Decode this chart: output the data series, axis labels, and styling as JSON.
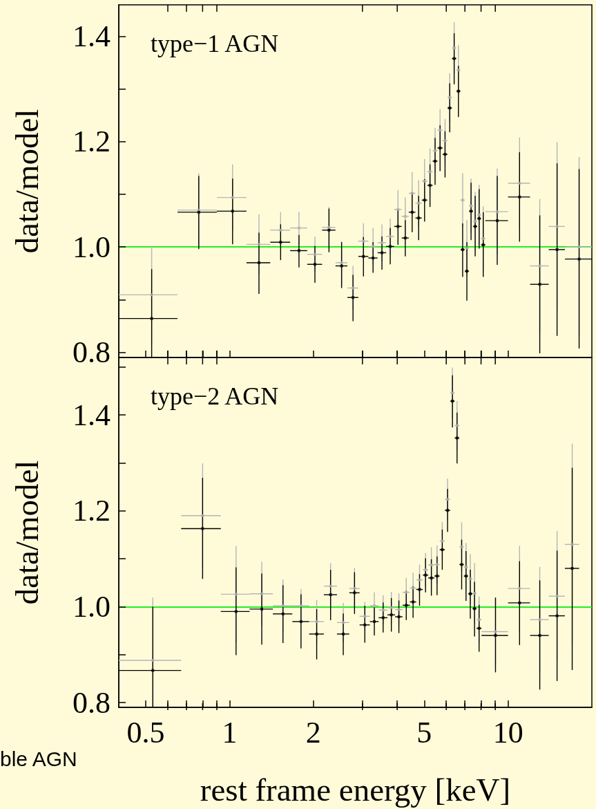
{
  "chart_data": [
    {
      "type": "scatter",
      "ylabel": "data/model",
      "annotations": [
        "type−1 AGN"
      ],
      "marker": "square",
      "grid": false,
      "legend": false,
      "tick_labels": "y",
      "xlim": [
        0.4,
        20
      ],
      "log": "x",
      "xticks": [
        0.5,
        {
          "value": 0.6,
          "label": null
        },
        {
          "value": 0.7,
          "label": null
        },
        {
          "value": 0.8,
          "label": null
        },
        {
          "value": 0.9,
          "label": null
        },
        1,
        2,
        {
          "value": 3,
          "label": null
        },
        {
          "value": 4,
          "label": null
        },
        5,
        {
          "value": 6,
          "label": null
        },
        {
          "value": 7,
          "label": null
        },
        {
          "value": 8,
          "label": null
        },
        {
          "value": 9,
          "label": null
        },
        10
      ],
      "ylim": [
        0.79,
        1.46
      ],
      "yticks": [
        0.8,
        {
          "value": 0.9,
          "label": null
        },
        {
          "value": 1,
          "label": "1.0"
        },
        {
          "value": 1.1,
          "label": null
        },
        1.2,
        {
          "value": 1.3,
          "label": null
        },
        1.4
      ],
      "ref_lines": [
        {
          "axis": "y",
          "value": 1,
          "color": "#22ee22"
        }
      ],
      "x": [
        0.525,
        0.775,
        1.025,
        1.275,
        1.525,
        1.775,
        2.025,
        2.275,
        2.525,
        2.775,
        3.025,
        3.275,
        3.525,
        3.775,
        4.025,
        4.275,
        4.525,
        4.775,
        5.015,
        5.245,
        5.47,
        5.7,
        5.94,
        6.175,
        6.405,
        6.635,
        6.87,
        7.115,
        7.365,
        7.62,
        7.875,
        8.145,
        9.145,
        11,
        13,
        15,
        18
      ],
      "series": [
        {
          "color": "#b4b4b4",
          "values": [
            0.909,
            1.07,
            1.094,
            1.005,
            1.032,
            1.036,
            0.986,
            1.037,
            0.97,
            0.922,
            1.011,
            1.001,
            1.008,
            1.02,
            1.071,
            1.058,
            1.102,
            1.083,
            1.125,
            1.143,
            1.183,
            1.222,
            1.202,
            1.284,
            1.378,
            1.336,
            1.089,
            0.998,
            1.078,
            1.049,
            1.061,
            1.016,
            1.067,
            1.121,
            0.964,
            1.039,
            1.0
          ],
          "errors": [
            [
              0.816,
              1.002
            ],
            [
              1.0,
              1.14
            ],
            [
              1.031,
              1.157
            ],
            [
              0.948,
              1.062
            ],
            [
              0.998,
              1.066
            ],
            [
              1.005,
              1.067
            ],
            [
              0.952,
              1.02
            ],
            [
              0.998,
              1.076
            ],
            [
              0.929,
              1.011
            ],
            [
              0.88,
              0.964
            ],
            [
              0.977,
              1.045
            ],
            [
              0.966,
              1.036
            ],
            [
              0.973,
              1.043
            ],
            [
              0.986,
              1.054
            ],
            [
              1.034,
              1.108
            ],
            [
              1.022,
              1.094
            ],
            [
              1.062,
              1.142
            ],
            [
              1.039,
              1.127
            ],
            [
              1.083,
              1.167
            ],
            [
              1.099,
              1.187
            ],
            [
              1.14,
              1.226
            ],
            [
              1.182,
              1.262
            ],
            [
              1.161,
              1.243
            ],
            [
              1.238,
              1.33
            ],
            [
              1.329,
              1.427
            ],
            [
              1.289,
              1.383
            ],
            [
              1.038,
              1.14
            ],
            [
              0.945,
              1.051
            ],
            [
              1.026,
              1.13
            ],
            [
              0.993,
              1.105
            ],
            [
              1.004,
              1.118
            ],
            [
              0.955,
              1.077
            ],
            [
              0.985,
              1.149
            ],
            [
              1.034,
              1.208
            ],
            [
              0.837,
              1.091
            ],
            [
              0.879,
              1.199
            ],
            [
              0.829,
              1.171
            ]
          ],
          "xerrors": [
            [
              0.4,
              0.65
            ],
            [
              0.65,
              0.9
            ],
            [
              0.9,
              1.15
            ],
            [
              1.15,
              1.4
            ],
            [
              1.4,
              1.65
            ],
            [
              1.65,
              1.9
            ],
            [
              1.9,
              2.15
            ],
            [
              2.15,
              2.4
            ],
            [
              2.4,
              2.65
            ],
            [
              2.65,
              2.9
            ],
            [
              2.9,
              3.15
            ],
            [
              3.15,
              3.4
            ],
            [
              3.4,
              3.65
            ],
            [
              3.65,
              3.9
            ],
            [
              3.9,
              4.15
            ],
            [
              4.15,
              4.4
            ],
            [
              4.4,
              4.65
            ],
            [
              4.65,
              4.9
            ],
            [
              4.9,
              5.13
            ],
            [
              5.13,
              5.36
            ],
            [
              5.36,
              5.58
            ],
            [
              5.58,
              5.82
            ],
            [
              5.82,
              6.06
            ],
            [
              6.06,
              6.29
            ],
            [
              6.29,
              6.52
            ],
            [
              6.52,
              6.75
            ],
            [
              6.75,
              6.99
            ],
            [
              6.99,
              7.24
            ],
            [
              7.24,
              7.49
            ],
            [
              7.49,
              7.75
            ],
            [
              7.75,
              8.0
            ],
            [
              8.0,
              8.29
            ],
            [
              8.29,
              10
            ],
            [
              10,
              12
            ],
            [
              12,
              14
            ],
            [
              14,
              16
            ],
            [
              16,
              20
            ]
          ]
        },
        {
          "color": "#000000",
          "values": [
            0.864,
            1.066,
            1.068,
            0.97,
            1.009,
            0.993,
            0.967,
            1.032,
            0.964,
            0.904,
            0.982,
            0.979,
            0.989,
            1.001,
            1.039,
            1.017,
            1.066,
            1.055,
            1.089,
            1.117,
            1.163,
            1.188,
            1.176,
            1.264,
            1.358,
            1.296,
            0.995,
            0.954,
            1.068,
            1.039,
            1.054,
            1.004,
            1.05,
            1.095,
            0.929,
            0.995,
            0.977
          ],
          "errors": [
            [
              0.79,
              0.958
            ],
            [
              0.996,
              1.135
            ],
            [
              1.005,
              1.13
            ],
            [
              0.911,
              1.027
            ],
            [
              0.975,
              1.043
            ],
            [
              0.961,
              1.023
            ],
            [
              0.932,
              1.002
            ],
            [
              0.99,
              1.073
            ],
            [
              0.922,
              1.009
            ],
            [
              0.859,
              0.947
            ],
            [
              0.944,
              1.019
            ],
            [
              0.951,
              1.009
            ],
            [
              0.957,
              1.02
            ],
            [
              0.967,
              1.036
            ],
            [
              1.004,
              1.072
            ],
            [
              0.982,
              1.051
            ],
            [
              1.028,
              1.104
            ],
            [
              1.013,
              1.097
            ],
            [
              1.048,
              1.129
            ],
            [
              1.076,
              1.157
            ],
            [
              1.118,
              1.207
            ],
            [
              1.144,
              1.231
            ],
            [
              1.132,
              1.22
            ],
            [
              1.218,
              1.311
            ],
            [
              1.309,
              1.406
            ],
            [
              1.247,
              1.344
            ],
            [
              0.943,
              1.045
            ],
            [
              0.898,
              1.009
            ],
            [
              1.013,
              1.122
            ],
            [
              0.982,
              1.097
            ],
            [
              0.997,
              1.11
            ],
            [
              0.943,
              1.066
            ],
            [
              0.966,
              1.135
            ],
            [
              1.01,
              1.18
            ],
            [
              0.798,
              1.06
            ],
            [
              0.831,
              1.159
            ],
            [
              0.807,
              1.148
            ]
          ],
          "xerrors": [
            [
              0.4,
              0.65
            ],
            [
              0.65,
              0.9
            ],
            [
              0.9,
              1.15
            ],
            [
              1.15,
              1.4
            ],
            [
              1.4,
              1.65
            ],
            [
              1.65,
              1.9
            ],
            [
              1.9,
              2.15
            ],
            [
              2.15,
              2.4
            ],
            [
              2.4,
              2.65
            ],
            [
              2.65,
              2.9
            ],
            [
              2.9,
              3.15
            ],
            [
              3.15,
              3.4
            ],
            [
              3.4,
              3.65
            ],
            [
              3.65,
              3.9
            ],
            [
              3.9,
              4.15
            ],
            [
              4.15,
              4.4
            ],
            [
              4.4,
              4.65
            ],
            [
              4.65,
              4.9
            ],
            [
              4.9,
              5.13
            ],
            [
              5.13,
              5.36
            ],
            [
              5.36,
              5.58
            ],
            [
              5.58,
              5.82
            ],
            [
              5.82,
              6.06
            ],
            [
              6.06,
              6.29
            ],
            [
              6.29,
              6.52
            ],
            [
              6.52,
              6.75
            ],
            [
              6.75,
              6.99
            ],
            [
              6.99,
              7.24
            ],
            [
              7.24,
              7.49
            ],
            [
              7.49,
              7.75
            ],
            [
              7.75,
              8.0
            ],
            [
              8.0,
              8.29
            ],
            [
              8.29,
              10
            ],
            [
              10,
              12
            ],
            [
              12,
              14
            ],
            [
              14,
              16
            ],
            [
              16,
              20
            ]
          ]
        }
      ]
    },
    {
      "type": "scatter",
      "ylabel": "data/model",
      "xlabel": "rest frame energy [keV]",
      "annotations": [
        "type−2 AGN",
        "ble AGN"
      ],
      "marker": "square",
      "grid": false,
      "legend": false,
      "xlim": [
        0.4,
        20
      ],
      "log": "x",
      "xticks": [
        0.5,
        {
          "value": 0.6,
          "label": null
        },
        {
          "value": 0.7,
          "label": null
        },
        {
          "value": 0.8,
          "label": null
        },
        {
          "value": 0.9,
          "label": null
        },
        1,
        2,
        {
          "value": 3,
          "label": null
        },
        {
          "value": 4,
          "label": null
        },
        5,
        {
          "value": 6,
          "label": null
        },
        {
          "value": 7,
          "label": null
        },
        {
          "value": 8,
          "label": null
        },
        {
          "value": 9,
          "label": null
        },
        10
      ],
      "ylim": [
        0.79,
        1.52
      ],
      "yticks": [
        0.8,
        {
          "value": 0.9,
          "label": null
        },
        {
          "value": 1,
          "label": "1.0"
        },
        {
          "value": 1.1,
          "label": null
        },
        1.2,
        {
          "value": 1.3,
          "label": null
        },
        1.4,
        {
          "value": 1.5,
          "label": null
        }
      ],
      "ref_lines": [
        {
          "axis": "y",
          "value": 1,
          "color": "#22ee22"
        }
      ],
      "x": [
        0.53,
        0.8,
        1.055,
        1.305,
        1.555,
        1.805,
        2.055,
        2.305,
        2.56,
        2.81,
        3.06,
        3.31,
        3.56,
        3.81,
        4.055,
        4.31,
        4.56,
        4.81,
        5.055,
        5.305,
        5.56,
        5.805,
        6.065,
        6.315,
        6.56,
        6.815,
        7.065,
        7.32,
        7.58,
        7.87,
        9.015,
        11,
        13,
        15,
        17
      ],
      "series": [
        {
          "color": "#b4b4b4",
          "values": [
            0.888,
            1.19,
            1.026,
            1.027,
            1.002,
            1.002,
            0.969,
            1.043,
            0.967,
            1.038,
            0.98,
            1.002,
            0.993,
            0.998,
            0.994,
            1.03,
            1.039,
            1.056,
            1.077,
            1.087,
            1.088,
            1.137,
            1.224,
            1.446,
            1.378,
            1.125,
            1.083,
            1.058,
            1.028,
            0.973,
            0.948,
            1.038,
            0.973,
            1.022,
            1.13
          ],
          "errors": [
            [
              0.79,
              1.019
            ],
            [
              1.081,
              1.299
            ],
            [
              0.925,
              1.127
            ],
            [
              0.96,
              1.094
            ],
            [
              0.947,
              1.057
            ],
            [
              0.967,
              1.037
            ],
            [
              0.924,
              1.014
            ],
            [
              0.995,
              1.091
            ],
            [
              0.926,
              1.008
            ],
            [
              0.995,
              1.081
            ],
            [
              0.95,
              1.01
            ],
            [
              0.974,
              1.03
            ],
            [
              0.962,
              1.024
            ],
            [
              0.965,
              1.031
            ],
            [
              0.96,
              1.028
            ],
            [
              1.0,
              1.06
            ],
            [
              1.007,
              1.071
            ],
            [
              1.024,
              1.088
            ],
            [
              1.042,
              1.112
            ],
            [
              1.05,
              1.124
            ],
            [
              1.048,
              1.128
            ],
            [
              1.097,
              1.177
            ],
            [
              1.181,
              1.267
            ],
            [
              1.393,
              1.499
            ],
            [
              1.327,
              1.429
            ],
            [
              1.074,
              1.176
            ],
            [
              1.033,
              1.133
            ],
            [
              1.006,
              1.11
            ],
            [
              0.965,
              1.091
            ],
            [
              0.925,
              1.021
            ],
            [
              0.877,
              1.019
            ],
            [
              0.949,
              1.127
            ],
            [
              0.863,
              1.083
            ],
            [
              0.886,
              1.158
            ],
            [
              0.92,
              1.34
            ]
          ],
          "xerrors": [
            [
              0.4,
              0.67
            ],
            [
              0.67,
              0.93
            ],
            [
              0.93,
              1.18
            ],
            [
              1.18,
              1.43
            ],
            [
              1.43,
              1.68
            ],
            [
              1.68,
              1.93
            ],
            [
              1.93,
              2.18
            ],
            [
              2.18,
              2.43
            ],
            [
              2.43,
              2.69
            ],
            [
              2.69,
              2.93
            ],
            [
              2.93,
              3.19
            ],
            [
              3.19,
              3.43
            ],
            [
              3.43,
              3.69
            ],
            [
              3.69,
              3.93
            ],
            [
              3.93,
              4.18
            ],
            [
              4.18,
              4.44
            ],
            [
              4.44,
              4.68
            ],
            [
              4.68,
              4.94
            ],
            [
              4.94,
              5.17
            ],
            [
              5.17,
              5.44
            ],
            [
              5.44,
              5.68
            ],
            [
              5.68,
              5.93
            ],
            [
              5.93,
              6.2
            ],
            [
              6.2,
              6.43
            ],
            [
              6.43,
              6.69
            ],
            [
              6.69,
              6.94
            ],
            [
              6.94,
              7.19
            ],
            [
              7.19,
              7.45
            ],
            [
              7.45,
              7.71
            ],
            [
              7.71,
              8.03
            ],
            [
              8.03,
              10
            ],
            [
              10,
              12
            ],
            [
              12,
              14
            ],
            [
              14,
              16
            ],
            [
              16,
              18
            ]
          ]
        },
        {
          "color": "#000000",
          "values": [
            0.867,
            1.163,
            0.99,
            0.995,
            0.985,
            0.969,
            0.943,
            1.025,
            0.943,
            1.029,
            0.962,
            0.969,
            0.977,
            0.983,
            0.979,
            1.003,
            1.01,
            1.036,
            1.066,
            1.06,
            1.064,
            1.119,
            1.201,
            1.429,
            1.352,
            1.088,
            1.064,
            1.027,
            0.996,
            0.955,
            0.94,
            1.008,
            0.94,
            0.981,
            1.08
          ],
          "errors": [
            [
              0.79,
              1.0
            ],
            [
              1.058,
              1.269
            ],
            [
              0.899,
              1.082
            ],
            [
              0.921,
              1.069
            ],
            [
              0.924,
              1.045
            ],
            [
              0.913,
              1.026
            ],
            [
              0.89,
              0.995
            ],
            [
              0.972,
              1.077
            ],
            [
              0.899,
              0.986
            ],
            [
              0.985,
              1.072
            ],
            [
              0.925,
              1.002
            ],
            [
              0.94,
              0.999
            ],
            [
              0.946,
              1.009
            ],
            [
              0.948,
              1.018
            ],
            [
              0.945,
              1.013
            ],
            [
              0.972,
              1.033
            ],
            [
              0.977,
              1.043
            ],
            [
              1.002,
              1.068
            ],
            [
              1.03,
              1.101
            ],
            [
              1.023,
              1.099
            ],
            [
              1.024,
              1.105
            ],
            [
              1.077,
              1.161
            ],
            [
              1.156,
              1.246
            ],
            [
              1.374,
              1.483
            ],
            [
              1.299,
              1.405
            ],
            [
              1.036,
              1.14
            ],
            [
              1.012,
              1.116
            ],
            [
              0.975,
              1.077
            ],
            [
              0.938,
              1.052
            ],
            [
              0.906,
              1.004
            ],
            [
              0.863,
              1.019
            ],
            [
              0.92,
              1.095
            ],
            [
              0.827,
              1.055
            ],
            [
              0.845,
              1.117
            ],
            [
              0.868,
              1.29
            ]
          ],
          "xerrors": [
            [
              0.4,
              0.67
            ],
            [
              0.67,
              0.93
            ],
            [
              0.93,
              1.18
            ],
            [
              1.18,
              1.43
            ],
            [
              1.43,
              1.68
            ],
            [
              1.68,
              1.93
            ],
            [
              1.93,
              2.18
            ],
            [
              2.18,
              2.43
            ],
            [
              2.43,
              2.69
            ],
            [
              2.69,
              2.93
            ],
            [
              2.93,
              3.19
            ],
            [
              3.19,
              3.43
            ],
            [
              3.43,
              3.69
            ],
            [
              3.69,
              3.93
            ],
            [
              3.93,
              4.18
            ],
            [
              4.18,
              4.44
            ],
            [
              4.44,
              4.68
            ],
            [
              4.68,
              4.94
            ],
            [
              4.94,
              5.17
            ],
            [
              5.17,
              5.44
            ],
            [
              5.44,
              5.68
            ],
            [
              5.68,
              5.93
            ],
            [
              5.93,
              6.2
            ],
            [
              6.2,
              6.43
            ],
            [
              6.43,
              6.69
            ],
            [
              6.69,
              6.94
            ],
            [
              6.94,
              7.19
            ],
            [
              7.19,
              7.45
            ],
            [
              7.45,
              7.71
            ],
            [
              7.71,
              8.03
            ],
            [
              8.03,
              10
            ],
            [
              10,
              12
            ],
            [
              12,
              14
            ],
            [
              14,
              16
            ],
            [
              16,
              18
            ]
          ]
        }
      ]
    }
  ]
}
